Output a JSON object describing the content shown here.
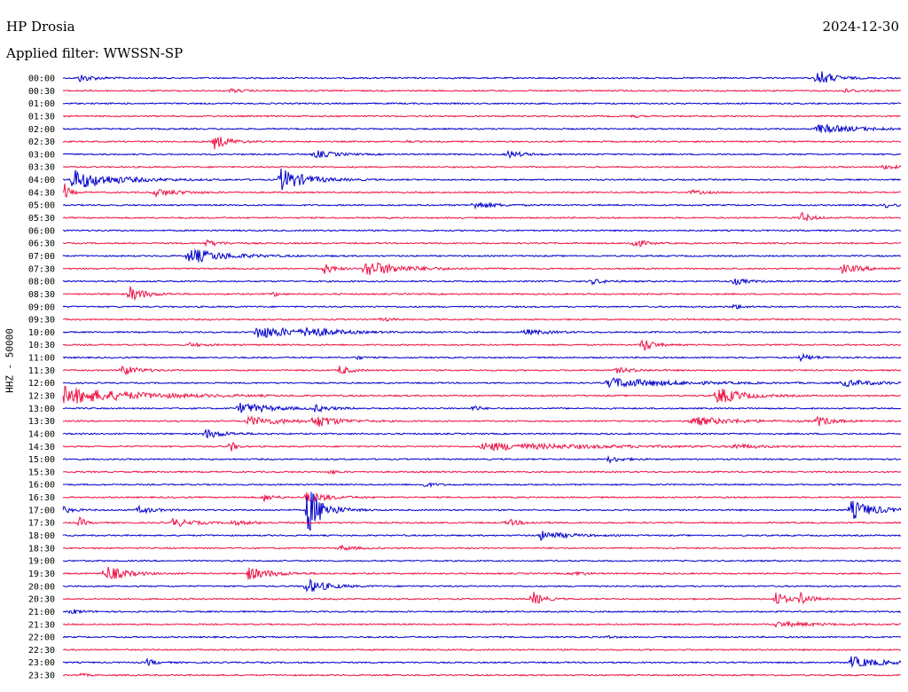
{
  "header": {
    "station": "HP Drosia",
    "date": "2024-12-30",
    "filter_label": "Applied filter: WWSSN-SP"
  },
  "colors": {
    "odd_trace": "#0000cc",
    "even_trace": "#ee1144",
    "background": "#ffffff"
  },
  "chart_data": {
    "type": "line",
    "title": "HP Drosia",
    "ylabel": "HHZ - 50000",
    "xlabel": "",
    "rows": [
      {
        "time": "00:00",
        "events": [
          [
            0.02,
            0.6,
            0.03
          ],
          [
            0.9,
            1.4,
            0.03
          ]
        ]
      },
      {
        "time": "00:30",
        "events": [
          [
            0.2,
            0.3,
            0.02
          ],
          [
            0.93,
            0.3,
            0.03
          ]
        ]
      },
      {
        "time": "01:00",
        "events": []
      },
      {
        "time": "01:30",
        "events": [
          [
            0.68,
            0.3,
            0.01
          ]
        ]
      },
      {
        "time": "02:00",
        "events": [
          [
            0.9,
            0.7,
            0.08
          ]
        ]
      },
      {
        "time": "02:30",
        "events": [
          [
            0.18,
            1.2,
            0.03
          ],
          [
            0.41,
            0.2,
            0.01
          ]
        ]
      },
      {
        "time": "03:00",
        "events": [
          [
            0.3,
            0.6,
            0.04
          ],
          [
            0.53,
            0.6,
            0.03
          ]
        ]
      },
      {
        "time": "03:30",
        "events": [
          [
            0.98,
            0.5,
            0.02
          ]
        ]
      },
      {
        "time": "04:00",
        "events": [
          [
            0.01,
            1.6,
            0.08
          ],
          [
            0.26,
            1.8,
            0.05
          ]
        ]
      },
      {
        "time": "04:30",
        "events": [
          [
            0.0,
            2.0,
            0.01
          ],
          [
            0.11,
            0.6,
            0.05
          ],
          [
            0.75,
            0.3,
            0.03
          ]
        ]
      },
      {
        "time": "05:00",
        "events": [
          [
            0.49,
            0.6,
            0.04
          ],
          [
            0.98,
            0.4,
            0.02
          ]
        ]
      },
      {
        "time": "05:30",
        "events": [
          [
            0.88,
            0.9,
            0.02
          ]
        ]
      },
      {
        "time": "06:00",
        "events": []
      },
      {
        "time": "06:30",
        "events": [
          [
            0.17,
            0.5,
            0.03
          ],
          [
            0.68,
            0.9,
            0.02
          ]
        ]
      },
      {
        "time": "07:00",
        "events": [
          [
            0.15,
            1.2,
            0.07
          ]
        ]
      },
      {
        "time": "07:30",
        "events": [
          [
            0.31,
            1.0,
            0.02
          ],
          [
            0.36,
            1.3,
            0.07
          ],
          [
            0.93,
            0.6,
            0.05
          ]
        ]
      },
      {
        "time": "08:00",
        "events": [
          [
            0.63,
            0.4,
            0.03
          ],
          [
            0.8,
            0.5,
            0.03
          ]
        ]
      },
      {
        "time": "08:30",
        "events": [
          [
            0.08,
            1.2,
            0.03
          ],
          [
            0.25,
            0.5,
            0.01
          ]
        ]
      },
      {
        "time": "09:00",
        "events": [
          [
            0.8,
            0.4,
            0.02
          ]
        ]
      },
      {
        "time": "09:30",
        "events": [
          [
            0.38,
            0.3,
            0.02
          ]
        ]
      },
      {
        "time": "10:00",
        "events": [
          [
            0.23,
            1.0,
            0.09
          ],
          [
            0.29,
            0.8,
            0.04
          ],
          [
            0.55,
            0.4,
            0.05
          ]
        ]
      },
      {
        "time": "10:30",
        "events": [
          [
            0.15,
            0.3,
            0.03
          ],
          [
            0.69,
            1.4,
            0.02
          ]
        ]
      },
      {
        "time": "11:00",
        "events": [
          [
            0.35,
            0.4,
            0.01
          ],
          [
            0.88,
            0.5,
            0.03
          ]
        ]
      },
      {
        "time": "11:30",
        "events": [
          [
            0.07,
            0.9,
            0.03
          ],
          [
            0.33,
            0.8,
            0.02
          ],
          [
            0.66,
            0.4,
            0.04
          ]
        ]
      },
      {
        "time": "12:00",
        "events": [
          [
            0.65,
            0.8,
            0.12
          ],
          [
            0.93,
            0.5,
            0.07
          ]
        ]
      },
      {
        "time": "12:30",
        "events": [
          [
            0.0,
            1.4,
            0.14
          ],
          [
            0.78,
            1.4,
            0.05
          ]
        ]
      },
      {
        "time": "13:00",
        "events": [
          [
            0.21,
            0.9,
            0.06
          ],
          [
            0.3,
            0.5,
            0.03
          ],
          [
            0.49,
            0.7,
            0.01
          ]
        ]
      },
      {
        "time": "13:30",
        "events": [
          [
            0.22,
            0.7,
            0.08
          ],
          [
            0.3,
            1.0,
            0.04
          ],
          [
            0.75,
            0.7,
            0.08
          ],
          [
            0.9,
            0.8,
            0.03
          ]
        ]
      },
      {
        "time": "14:00",
        "events": [
          [
            0.17,
            0.7,
            0.04
          ]
        ]
      },
      {
        "time": "14:30",
        "events": [
          [
            0.2,
            1.0,
            0.01
          ],
          [
            0.5,
            0.6,
            0.2
          ],
          [
            0.8,
            0.4,
            0.04
          ]
        ]
      },
      {
        "time": "15:00",
        "events": [
          [
            0.65,
            0.5,
            0.03
          ]
        ]
      },
      {
        "time": "15:30",
        "events": [
          [
            0.32,
            0.5,
            0.01
          ]
        ]
      },
      {
        "time": "16:00",
        "events": [
          [
            0.43,
            0.4,
            0.02
          ]
        ]
      },
      {
        "time": "16:30",
        "events": [
          [
            0.24,
            0.6,
            0.02
          ],
          [
            0.29,
            1.0,
            0.04
          ]
        ]
      },
      {
        "time": "17:00",
        "events": [
          [
            0.0,
            0.5,
            0.02
          ],
          [
            0.09,
            0.6,
            0.03
          ],
          [
            0.29,
            4.5,
            0.03
          ],
          [
            0.94,
            1.5,
            0.05
          ]
        ]
      },
      {
        "time": "17:30",
        "events": [
          [
            0.02,
            0.9,
            0.01
          ],
          [
            0.13,
            0.7,
            0.04
          ],
          [
            0.2,
            0.3,
            0.05
          ],
          [
            0.53,
            0.5,
            0.03
          ]
        ]
      },
      {
        "time": "18:00",
        "events": [
          [
            0.57,
            0.7,
            0.05
          ]
        ]
      },
      {
        "time": "18:30",
        "events": [
          [
            0.33,
            0.4,
            0.03
          ]
        ]
      },
      {
        "time": "19:00",
        "events": []
      },
      {
        "time": "19:30",
        "events": [
          [
            0.05,
            1.3,
            0.04
          ],
          [
            0.22,
            1.0,
            0.05
          ],
          [
            0.61,
            0.4,
            0.02
          ]
        ]
      },
      {
        "time": "20:00",
        "events": [
          [
            0.29,
            1.2,
            0.04
          ]
        ]
      },
      {
        "time": "20:30",
        "events": [
          [
            0.56,
            1.2,
            0.02
          ],
          [
            0.85,
            1.3,
            0.02
          ],
          [
            0.88,
            1.0,
            0.02
          ]
        ]
      },
      {
        "time": "21:00",
        "events": [
          [
            0.01,
            0.4,
            0.02
          ]
        ]
      },
      {
        "time": "21:30",
        "events": [
          [
            0.85,
            0.4,
            0.08
          ]
        ]
      },
      {
        "time": "22:00",
        "events": [
          [
            0.65,
            0.3,
            0.01
          ]
        ]
      },
      {
        "time": "22:30",
        "events": []
      },
      {
        "time": "23:00",
        "events": [
          [
            0.1,
            0.5,
            0.02
          ],
          [
            0.94,
            0.9,
            0.06
          ]
        ]
      },
      {
        "time": "23:30",
        "events": [
          [
            0.02,
            0.4,
            0.01
          ]
        ]
      }
    ]
  }
}
